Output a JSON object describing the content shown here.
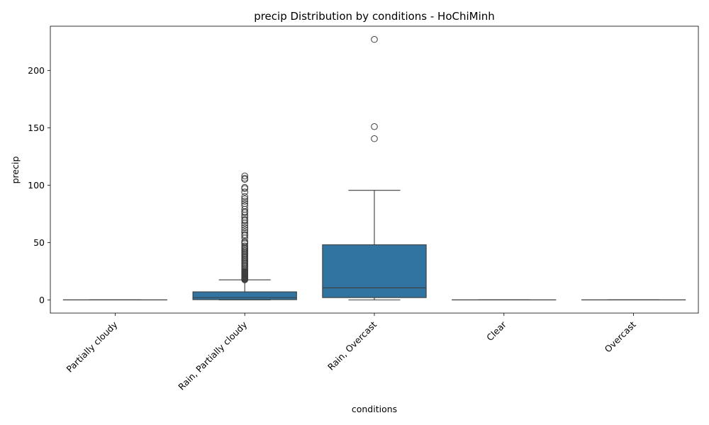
{
  "chart_data": {
    "type": "box",
    "title": "precip Distribution by conditions - HoChiMinh",
    "xlabel": "conditions",
    "ylabel": "precip",
    "ylim": [
      -11.5,
      238.5
    ],
    "yticks": [
      0,
      50,
      100,
      150,
      200
    ],
    "grid": false,
    "legend": "none",
    "box_color": "#3274a1",
    "line_color": "#3d3d3d",
    "categories": [
      "Partially cloudy",
      "Rain, Partially cloudy",
      "Rain, Overcast",
      "Clear",
      "Overcast"
    ],
    "boxes": [
      {
        "category": "Partially cloudy",
        "whisker_low": 0,
        "q1": 0,
        "median": 0,
        "q3": 0,
        "whisker_high": 0,
        "outliers": []
      },
      {
        "category": "Rain, Partially cloudy",
        "whisker_low": 0,
        "q1": 0.2,
        "median": 2,
        "q3": 7,
        "whisker_high": 17.5,
        "outliers": [
          17.5,
          18,
          18.5,
          19,
          19.5,
          20,
          20.5,
          21,
          21.5,
          22,
          22.5,
          23,
          23.5,
          24,
          24.5,
          25,
          26,
          27,
          28,
          29,
          30,
          31,
          32,
          33,
          34,
          35,
          36,
          37,
          38,
          39,
          40,
          41,
          42,
          43,
          44,
          45,
          46,
          47,
          49,
          50,
          51,
          54,
          56,
          57,
          59,
          61,
          63,
          65,
          67,
          69,
          70,
          72,
          74,
          76,
          77,
          79,
          82,
          84,
          86,
          88,
          90,
          94,
          97,
          98,
          105,
          106,
          108
        ]
      },
      {
        "category": "Rain, Overcast",
        "whisker_low": 0,
        "q1": 2,
        "median": 10.5,
        "q3": 48,
        "whisker_high": 95.5,
        "outliers": [
          140.5,
          151,
          227
        ]
      },
      {
        "category": "Clear",
        "whisker_low": 0,
        "q1": 0,
        "median": 0,
        "q3": 0,
        "whisker_high": 0,
        "outliers": []
      },
      {
        "category": "Overcast",
        "whisker_low": 0,
        "q1": 0,
        "median": 0,
        "q3": 0,
        "whisker_high": 0,
        "outliers": []
      }
    ]
  }
}
